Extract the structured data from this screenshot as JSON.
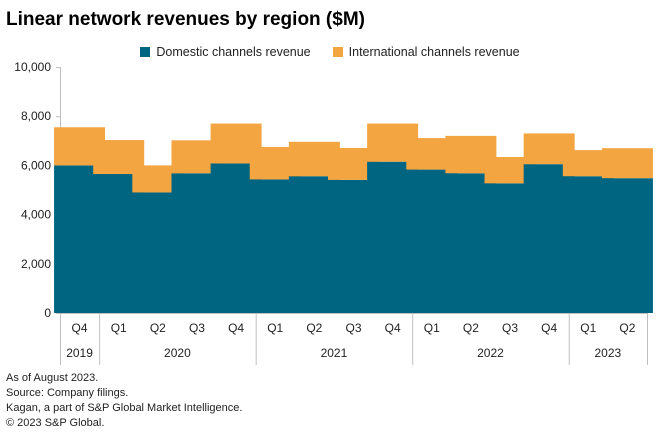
{
  "chart_data": {
    "type": "bar",
    "stacked": true,
    "title": "Linear network revenues by region ($M)",
    "xlabel": "",
    "ylabel": "",
    "ylim": [
      0,
      10000
    ],
    "yticks": [
      0,
      2000,
      4000,
      6000,
      8000,
      10000
    ],
    "ytick_labels": [
      "0",
      "2,000",
      "4,000",
      "6,000",
      "8,000",
      "10,000"
    ],
    "categories": [
      "Q4",
      "Q1",
      "Q2",
      "Q3",
      "Q4",
      "Q1",
      "Q2",
      "Q3",
      "Q4",
      "Q1",
      "Q2",
      "Q3",
      "Q4",
      "Q1",
      "Q2"
    ],
    "year_groups": [
      {
        "label": "2019",
        "start": 0,
        "count": 1
      },
      {
        "label": "2020",
        "start": 1,
        "count": 4
      },
      {
        "label": "2021",
        "start": 5,
        "count": 4
      },
      {
        "label": "2022",
        "start": 9,
        "count": 4
      },
      {
        "label": "2023",
        "start": 13,
        "count": 2
      }
    ],
    "series": [
      {
        "name": "Domestic channels revenue",
        "color": "#006580",
        "values": [
          6000,
          5650,
          4900,
          5680,
          6080,
          5430,
          5560,
          5410,
          6150,
          5830,
          5680,
          5270,
          6050,
          5560,
          5480
        ]
      },
      {
        "name": "International channels revenue",
        "color": "#F2A541",
        "values": [
          1550,
          1380,
          1100,
          1340,
          1620,
          1320,
          1400,
          1300,
          1550,
          1280,
          1520,
          1070,
          1250,
          1060,
          1220
        ]
      }
    ],
    "legend_position": "top-center",
    "grid": false
  },
  "footnotes": [
    "As of August 2023.",
    "Source: Company filings.",
    "Kagan, a part of S&P Global Market Intelligence.",
    "© 2023 S&P Global."
  ]
}
